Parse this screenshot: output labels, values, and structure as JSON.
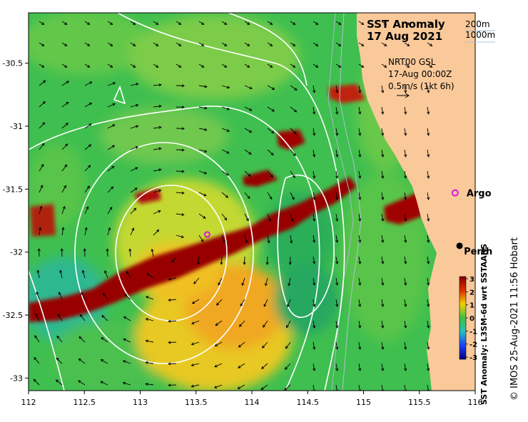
{
  "title": "SST Anomaly",
  "date": "17 Aug 2021",
  "depth_legend": [
    "200m",
    "1000m"
  ],
  "product": "NRT00 GSL",
  "time": "17-Aug 00:00Z",
  "vector_scale": "0.5m/s (1kt 6h)",
  "places": [
    {
      "name": "Argo",
      "lon": 115.82,
      "lat": -31.53,
      "marker": "magenta-ring"
    },
    {
      "name": "Perth",
      "lon": 115.86,
      "lat": -31.95,
      "marker": "black-dot"
    }
  ],
  "float_marker": {
    "lon": 113.6,
    "lat": -31.86
  },
  "colorbar": {
    "title": "SST Anomaly: L3SM-6d wrt SSTAARS",
    "ticks": [
      "3",
      "2",
      "1",
      "0",
      "-1",
      "-2",
      "-3"
    ]
  },
  "credit": "© IMOS 25-Aug-2021 11:56 Hobart",
  "axes": {
    "x_ticks": [
      "112",
      "112.5",
      "113",
      "113.5",
      "114",
      "114.5",
      "115",
      "115.5",
      "116"
    ],
    "y_ticks": [
      "-30.5",
      "-31",
      "-31.5",
      "-32",
      "-32.5",
      "-33"
    ],
    "xlim": [
      112,
      116
    ],
    "ylim": [
      -33.1,
      -30.1
    ]
  },
  "colors": {
    "land": "#f9c99a",
    "warm_anomaly": "#980000",
    "neutral": "#3fbf4f",
    "contour": "#ffffff",
    "argo": "#e010e0"
  }
}
